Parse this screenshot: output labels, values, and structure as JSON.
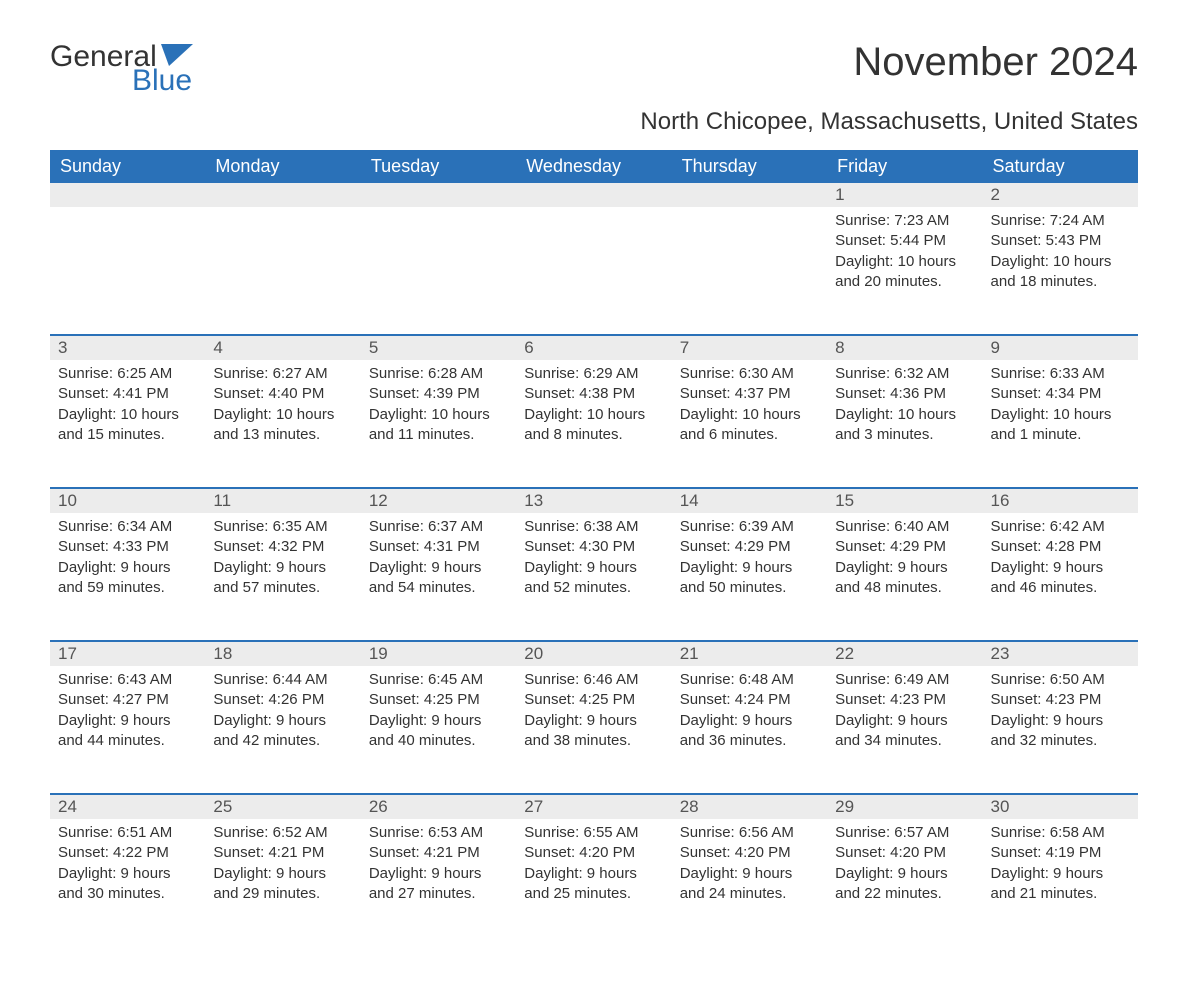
{
  "logo": {
    "text1": "General",
    "text2": "Blue",
    "flag_color": "#2a71b8"
  },
  "title": "November 2024",
  "subtitle": "North Chicopee, Massachusetts, United States",
  "colors": {
    "header_bg": "#2a71b8",
    "header_text": "#ffffff",
    "daynum_bg": "#ececec",
    "daynum_border": "#2a71b8",
    "body_text": "#333333",
    "page_bg": "#ffffff"
  },
  "typography": {
    "title_fontsize": 40,
    "subtitle_fontsize": 24,
    "header_fontsize": 18,
    "daynum_fontsize": 17,
    "cell_fontsize": 15,
    "font_family": "Arial"
  },
  "layout": {
    "columns": 7,
    "rows": 5,
    "first_day_column": 5
  },
  "day_labels": [
    "Sunday",
    "Monday",
    "Tuesday",
    "Wednesday",
    "Thursday",
    "Friday",
    "Saturday"
  ],
  "days": [
    {
      "n": 1,
      "sunrise": "7:23 AM",
      "sunset": "5:44 PM",
      "daylight": "10 hours and 20 minutes."
    },
    {
      "n": 2,
      "sunrise": "7:24 AM",
      "sunset": "5:43 PM",
      "daylight": "10 hours and 18 minutes."
    },
    {
      "n": 3,
      "sunrise": "6:25 AM",
      "sunset": "4:41 PM",
      "daylight": "10 hours and 15 minutes."
    },
    {
      "n": 4,
      "sunrise": "6:27 AM",
      "sunset": "4:40 PM",
      "daylight": "10 hours and 13 minutes."
    },
    {
      "n": 5,
      "sunrise": "6:28 AM",
      "sunset": "4:39 PM",
      "daylight": "10 hours and 11 minutes."
    },
    {
      "n": 6,
      "sunrise": "6:29 AM",
      "sunset": "4:38 PM",
      "daylight": "10 hours and 8 minutes."
    },
    {
      "n": 7,
      "sunrise": "6:30 AM",
      "sunset": "4:37 PM",
      "daylight": "10 hours and 6 minutes."
    },
    {
      "n": 8,
      "sunrise": "6:32 AM",
      "sunset": "4:36 PM",
      "daylight": "10 hours and 3 minutes."
    },
    {
      "n": 9,
      "sunrise": "6:33 AM",
      "sunset": "4:34 PM",
      "daylight": "10 hours and 1 minute."
    },
    {
      "n": 10,
      "sunrise": "6:34 AM",
      "sunset": "4:33 PM",
      "daylight": "9 hours and 59 minutes."
    },
    {
      "n": 11,
      "sunrise": "6:35 AM",
      "sunset": "4:32 PM",
      "daylight": "9 hours and 57 minutes."
    },
    {
      "n": 12,
      "sunrise": "6:37 AM",
      "sunset": "4:31 PM",
      "daylight": "9 hours and 54 minutes."
    },
    {
      "n": 13,
      "sunrise": "6:38 AM",
      "sunset": "4:30 PM",
      "daylight": "9 hours and 52 minutes."
    },
    {
      "n": 14,
      "sunrise": "6:39 AM",
      "sunset": "4:29 PM",
      "daylight": "9 hours and 50 minutes."
    },
    {
      "n": 15,
      "sunrise": "6:40 AM",
      "sunset": "4:29 PM",
      "daylight": "9 hours and 48 minutes."
    },
    {
      "n": 16,
      "sunrise": "6:42 AM",
      "sunset": "4:28 PM",
      "daylight": "9 hours and 46 minutes."
    },
    {
      "n": 17,
      "sunrise": "6:43 AM",
      "sunset": "4:27 PM",
      "daylight": "9 hours and 44 minutes."
    },
    {
      "n": 18,
      "sunrise": "6:44 AM",
      "sunset": "4:26 PM",
      "daylight": "9 hours and 42 minutes."
    },
    {
      "n": 19,
      "sunrise": "6:45 AM",
      "sunset": "4:25 PM",
      "daylight": "9 hours and 40 minutes."
    },
    {
      "n": 20,
      "sunrise": "6:46 AM",
      "sunset": "4:25 PM",
      "daylight": "9 hours and 38 minutes."
    },
    {
      "n": 21,
      "sunrise": "6:48 AM",
      "sunset": "4:24 PM",
      "daylight": "9 hours and 36 minutes."
    },
    {
      "n": 22,
      "sunrise": "6:49 AM",
      "sunset": "4:23 PM",
      "daylight": "9 hours and 34 minutes."
    },
    {
      "n": 23,
      "sunrise": "6:50 AM",
      "sunset": "4:23 PM",
      "daylight": "9 hours and 32 minutes."
    },
    {
      "n": 24,
      "sunrise": "6:51 AM",
      "sunset": "4:22 PM",
      "daylight": "9 hours and 30 minutes."
    },
    {
      "n": 25,
      "sunrise": "6:52 AM",
      "sunset": "4:21 PM",
      "daylight": "9 hours and 29 minutes."
    },
    {
      "n": 26,
      "sunrise": "6:53 AM",
      "sunset": "4:21 PM",
      "daylight": "9 hours and 27 minutes."
    },
    {
      "n": 27,
      "sunrise": "6:55 AM",
      "sunset": "4:20 PM",
      "daylight": "9 hours and 25 minutes."
    },
    {
      "n": 28,
      "sunrise": "6:56 AM",
      "sunset": "4:20 PM",
      "daylight": "9 hours and 24 minutes."
    },
    {
      "n": 29,
      "sunrise": "6:57 AM",
      "sunset": "4:20 PM",
      "daylight": "9 hours and 22 minutes."
    },
    {
      "n": 30,
      "sunrise": "6:58 AM",
      "sunset": "4:19 PM",
      "daylight": "9 hours and 21 minutes."
    }
  ],
  "labels": {
    "sunrise": "Sunrise: ",
    "sunset": "Sunset: ",
    "daylight": "Daylight: "
  }
}
